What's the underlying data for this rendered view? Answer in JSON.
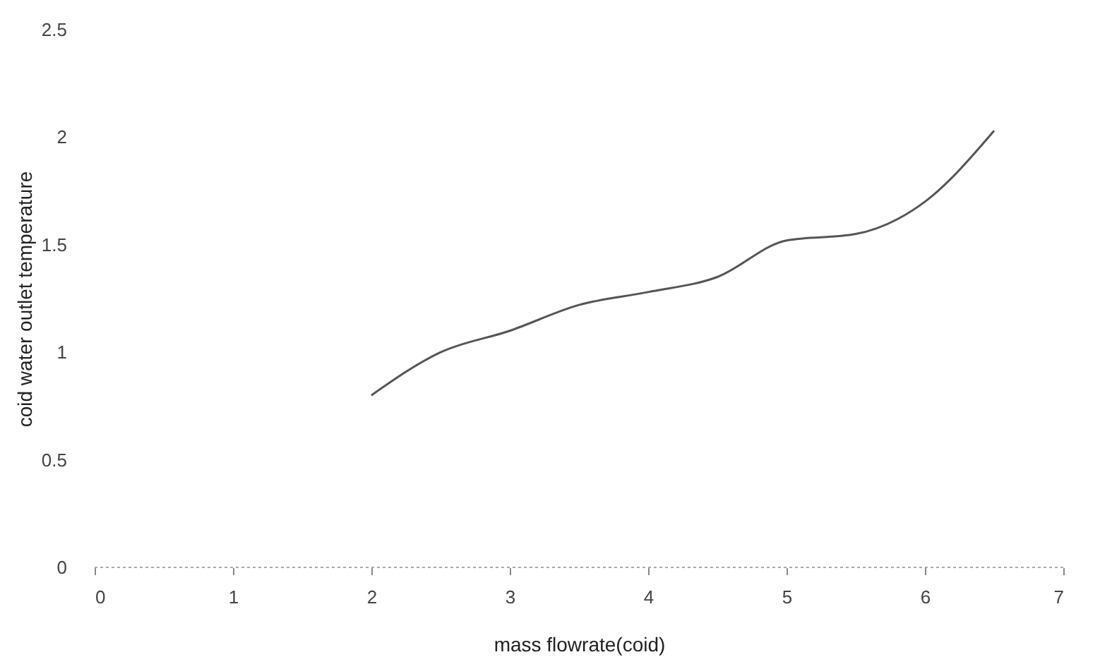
{
  "chart_data": {
    "type": "line",
    "xlabel": "mass flowrate(coid)",
    "ylabel": "coid water outlet temperature",
    "x": [
      2,
      2.5,
      3,
      3.5,
      4,
      4.5,
      5,
      5.5,
      6,
      6.5
    ],
    "series": [
      {
        "color": "#555555",
        "values": [
          0.8,
          1.0,
          1.1,
          1.22,
          1.28,
          1.35,
          1.52,
          1.55,
          1.7,
          2.03
        ]
      }
    ],
    "xlim": [
      0,
      7
    ],
    "xticks": [
      0,
      1,
      2,
      3,
      4,
      5,
      6,
      7
    ],
    "ylim": [
      0,
      2.5
    ],
    "yticks": [
      0,
      0.5,
      1,
      1.5,
      2,
      2.5
    ],
    "grid": false,
    "marker": "none",
    "line_style": "solid"
  }
}
